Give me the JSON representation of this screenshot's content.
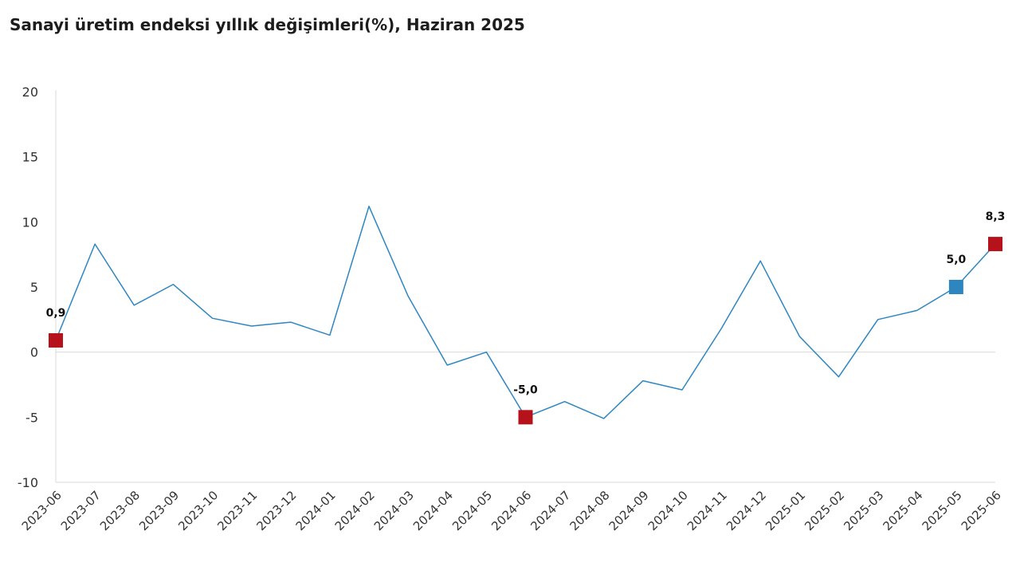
{
  "chart_data": {
    "type": "line",
    "title": "Sanayi üretim endeksi yıllık değişimleri(%), Haziran 2025",
    "xlabel": "",
    "ylabel": "",
    "ylim": [
      -10,
      20
    ],
    "yticks": [
      -10,
      -5,
      0,
      5,
      10,
      15,
      20
    ],
    "grid": false,
    "categories": [
      "2023-06",
      "2023-07",
      "2023-08",
      "2023-09",
      "2023-10",
      "2023-11",
      "2023-12",
      "2024-01",
      "2024-02",
      "2024-03",
      "2024-04",
      "2024-05",
      "2024-06",
      "2024-07",
      "2024-08",
      "2024-09",
      "2024-10",
      "2024-11",
      "2024-12",
      "2025-01",
      "2025-02",
      "2025-03",
      "2025-04",
      "2025-05",
      "2025-06"
    ],
    "series": [
      {
        "values": [
          0.9,
          8.3,
          3.6,
          5.2,
          2.6,
          2.0,
          2.3,
          1.3,
          11.2,
          4.3,
          -1.0,
          0.0,
          -5.0,
          -3.8,
          -5.1,
          -2.2,
          -2.9,
          1.8,
          7.0,
          1.2,
          -1.9,
          2.5,
          3.2,
          5.0,
          8.3
        ],
        "color": "#2e86c1"
      }
    ],
    "highlighted_points": [
      {
        "category": "2023-06",
        "value": 0.9,
        "label": "0,9",
        "color": "#b5121b"
      },
      {
        "category": "2024-06",
        "value": -5.0,
        "label": "-5,0",
        "color": "#b5121b"
      },
      {
        "category": "2025-05",
        "value": 5.0,
        "label": "5,0",
        "color": "#2e86c1"
      },
      {
        "category": "2025-06",
        "value": 8.3,
        "label": "8,3",
        "color": "#b5121b"
      }
    ],
    "colors": {
      "line": "#2e86c1",
      "axis": "#d9d9d9"
    }
  }
}
